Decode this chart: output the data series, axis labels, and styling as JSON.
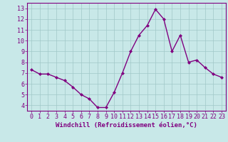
{
  "x": [
    0,
    1,
    2,
    3,
    4,
    5,
    6,
    7,
    8,
    9,
    10,
    11,
    12,
    13,
    14,
    15,
    16,
    17,
    18,
    19,
    20,
    21,
    22,
    23
  ],
  "y": [
    7.3,
    6.9,
    6.9,
    6.6,
    6.3,
    5.7,
    5.0,
    4.6,
    3.8,
    3.8,
    5.2,
    7.0,
    9.0,
    10.5,
    11.4,
    12.9,
    12.0,
    9.0,
    10.5,
    8.0,
    8.2,
    7.5,
    6.9,
    6.6
  ],
  "line_color": "#800080",
  "marker": "D",
  "marker_size": 2.0,
  "bg_color": "#c8e8e8",
  "grid_color": "#a0c8c8",
  "ylabel_ticks": [
    4,
    5,
    6,
    7,
    8,
    9,
    10,
    11,
    12,
    13
  ],
  "xlim": [
    -0.5,
    23.5
  ],
  "ylim": [
    3.5,
    13.5
  ],
  "xticks": [
    0,
    1,
    2,
    3,
    4,
    5,
    6,
    7,
    8,
    9,
    10,
    11,
    12,
    13,
    14,
    15,
    16,
    17,
    18,
    19,
    20,
    21,
    22,
    23
  ],
  "tick_color": "#800080",
  "xlabel": "Windchill (Refroidissement éolien,°C)",
  "xlabel_fontsize": 6.5,
  "tick_fontsize": 6.0,
  "line_width": 1.0,
  "figure_bg": "#c8e8e8",
  "spine_color": "#800080"
}
